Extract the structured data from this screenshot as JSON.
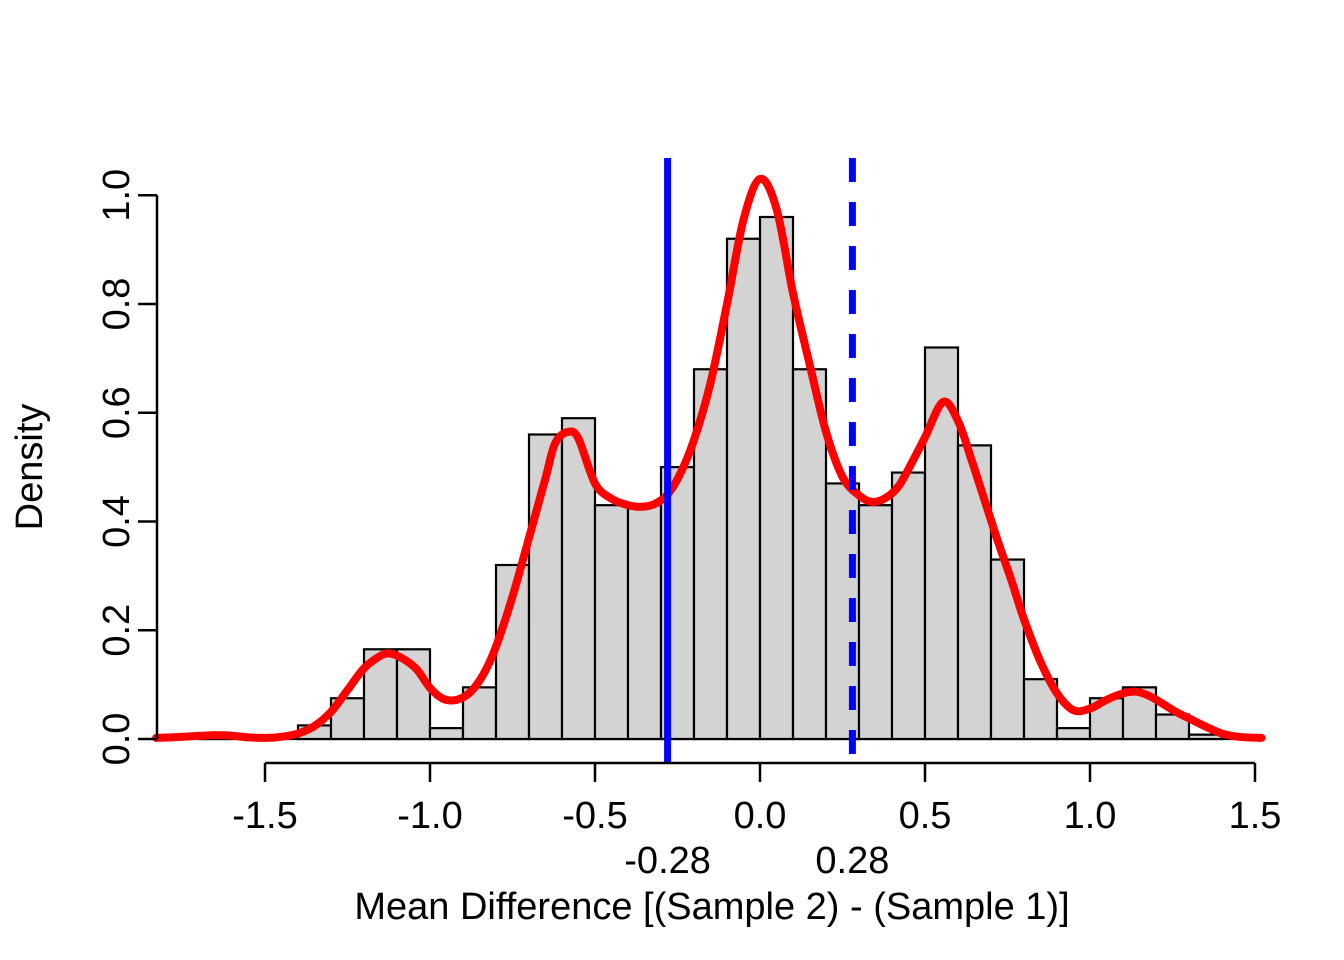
{
  "chart_data": {
    "type": "histogram",
    "title": "",
    "xlabel": "Mean Difference [(Sample 2) - (Sample 1)]",
    "ylabel": "Density",
    "xlim": [
      -1.83,
      1.55
    ],
    "ylim": [
      -0.04,
      1.07
    ],
    "grid": false,
    "legend": null,
    "x_tick_labels": [
      "-1.5",
      "-1.0",
      "-0.5",
      "0.0",
      "0.5",
      "1.0",
      "1.5"
    ],
    "x_tick_values": [
      -1.5,
      -1.0,
      -0.5,
      0.0,
      0.5,
      1.0,
      1.5
    ],
    "y_tick_labels": [
      "0.0",
      "0.2",
      "0.4",
      "0.6",
      "0.8",
      "1.0"
    ],
    "y_tick_values": [
      0.0,
      0.2,
      0.4,
      0.6,
      0.8,
      1.0
    ],
    "histogram": {
      "fill_color": "#d3d3d3",
      "border_color": "#000000",
      "bin_width": 0.1,
      "bins_start": -1.7,
      "densities": [
        0.01,
        0,
        0,
        0.025,
        0.075,
        0.165,
        0.165,
        0.02,
        0.095,
        0.32,
        0.56,
        0.59,
        0.43,
        0.43,
        0.5,
        0.68,
        0.92,
        0.96,
        0.68,
        0.47,
        0.43,
        0.49,
        0.72,
        0.54,
        0.33,
        0.11,
        0.02,
        0.075,
        0.095,
        0.045,
        0.008,
        0
      ]
    },
    "density_curve": {
      "color": "#ff0000",
      "line_width": 8,
      "x": [
        -1.83,
        -1.78,
        -1.72,
        -1.66,
        -1.6,
        -1.55,
        -1.5,
        -1.45,
        -1.4,
        -1.35,
        -1.3,
        -1.25,
        -1.2,
        -1.15,
        -1.12,
        -1.08,
        -1.04,
        -1.0,
        -0.96,
        -0.92,
        -0.88,
        -0.84,
        -0.8,
        -0.75,
        -0.7,
        -0.65,
        -0.62,
        -0.58,
        -0.55,
        -0.5,
        -0.45,
        -0.4,
        -0.36,
        -0.32,
        -0.28,
        -0.24,
        -0.2,
        -0.15,
        -0.1,
        -0.05,
        0.0,
        0.05,
        0.1,
        0.15,
        0.2,
        0.25,
        0.3,
        0.34,
        0.38,
        0.42,
        0.46,
        0.5,
        0.555,
        0.6,
        0.64,
        0.68,
        0.72,
        0.76,
        0.8,
        0.85,
        0.9,
        0.95,
        1.0,
        1.05,
        1.1,
        1.14,
        1.18,
        1.22,
        1.26,
        1.3,
        1.35,
        1.4,
        1.45,
        1.52
      ],
      "y": [
        0.002,
        0.003,
        0.005,
        0.007,
        0.006,
        0.003,
        0.002,
        0.004,
        0.01,
        0.024,
        0.05,
        0.09,
        0.13,
        0.153,
        0.157,
        0.147,
        0.128,
        0.094,
        0.074,
        0.072,
        0.085,
        0.117,
        0.17,
        0.262,
        0.37,
        0.48,
        0.545,
        0.565,
        0.552,
        0.47,
        0.442,
        0.43,
        0.427,
        0.432,
        0.45,
        0.49,
        0.55,
        0.655,
        0.8,
        0.955,
        1.03,
        0.975,
        0.82,
        0.69,
        0.565,
        0.482,
        0.448,
        0.436,
        0.443,
        0.465,
        0.508,
        0.555,
        0.62,
        0.585,
        0.515,
        0.44,
        0.365,
        0.295,
        0.22,
        0.142,
        0.084,
        0.053,
        0.056,
        0.072,
        0.084,
        0.087,
        0.079,
        0.065,
        0.05,
        0.038,
        0.023,
        0.01,
        0.004,
        0.002
      ]
    },
    "reference_lines": [
      {
        "x": -0.28,
        "label": "-0.28",
        "style": "solid",
        "color": "#0000ff"
      },
      {
        "x": 0.28,
        "label": "0.28",
        "style": "dashed",
        "color": "#0000ff"
      }
    ],
    "colors": {
      "bar_fill": "#d3d3d3",
      "bar_border": "#000000",
      "curve": "#ff0000",
      "reference": "#0000ff",
      "axis": "#000000",
      "background": "#ffffff"
    }
  }
}
